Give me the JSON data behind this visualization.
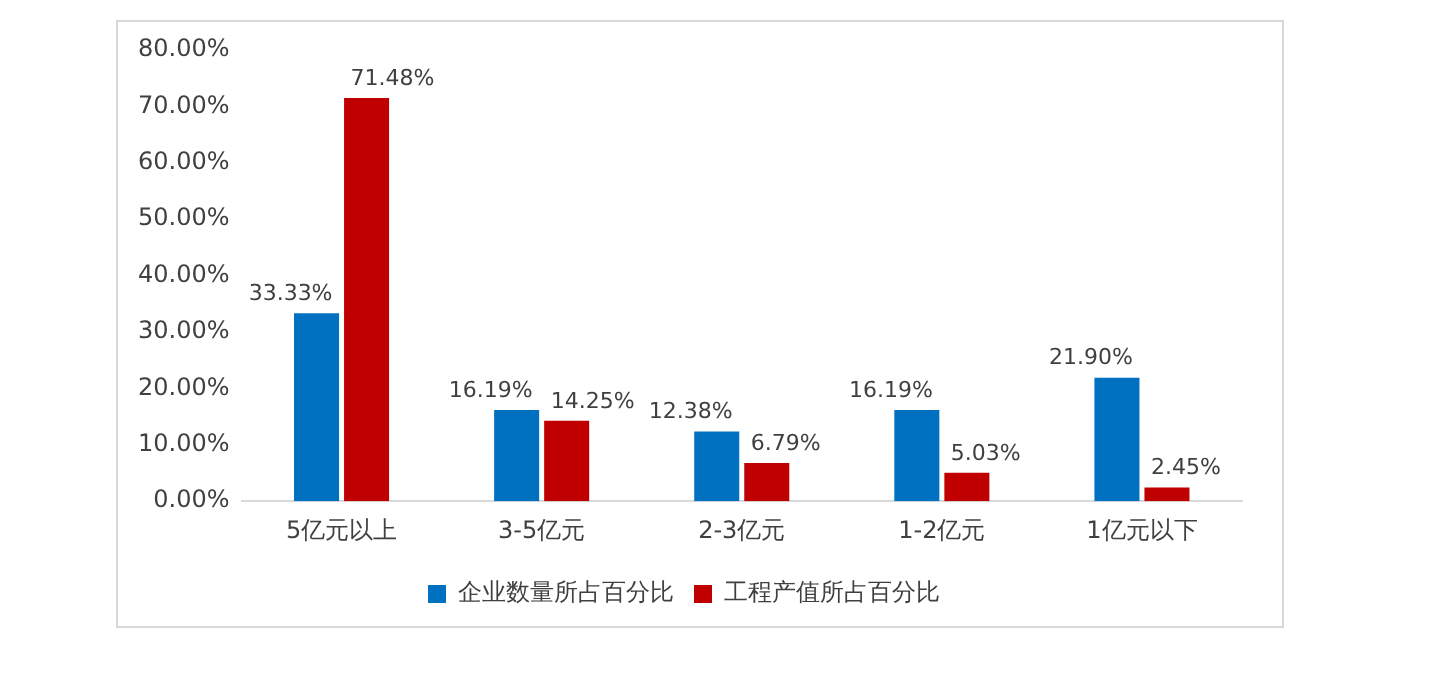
{
  "chart_data": {
    "type": "bar",
    "categories": [
      "5亿元以上",
      "3-5亿元",
      "2-3亿元",
      "1-2亿元",
      "1亿元以下"
    ],
    "series": [
      {
        "name": "企业数量所占百分比",
        "color": "#0070c0",
        "values": [
          33.33,
          16.19,
          12.38,
          16.19,
          21.9
        ],
        "value_labels": [
          "33.33%",
          "16.19%",
          "12.38%",
          "16.19%",
          "21.90%"
        ]
      },
      {
        "name": "工程产值所占百分比",
        "color": "#c00000",
        "values": [
          71.48,
          14.25,
          6.79,
          5.03,
          2.45
        ],
        "value_labels": [
          "71.48%",
          "14.25%",
          "6.79%",
          "5.03%",
          "2.45%"
        ]
      }
    ],
    "ylim": [
      0,
      80
    ],
    "yticks": [
      {
        "value": 0,
        "label": "0.00%"
      },
      {
        "value": 10,
        "label": "10.00%"
      },
      {
        "value": 20,
        "label": "20.00%"
      },
      {
        "value": 30,
        "label": "30.00%"
      },
      {
        "value": 40,
        "label": "40.00%"
      },
      {
        "value": 50,
        "label": "50.00%"
      },
      {
        "value": 60,
        "label": "60.00%"
      },
      {
        "value": 70,
        "label": "70.00%"
      },
      {
        "value": 80,
        "label": "80.00%"
      }
    ],
    "grid": false,
    "legend": "bottom"
  }
}
